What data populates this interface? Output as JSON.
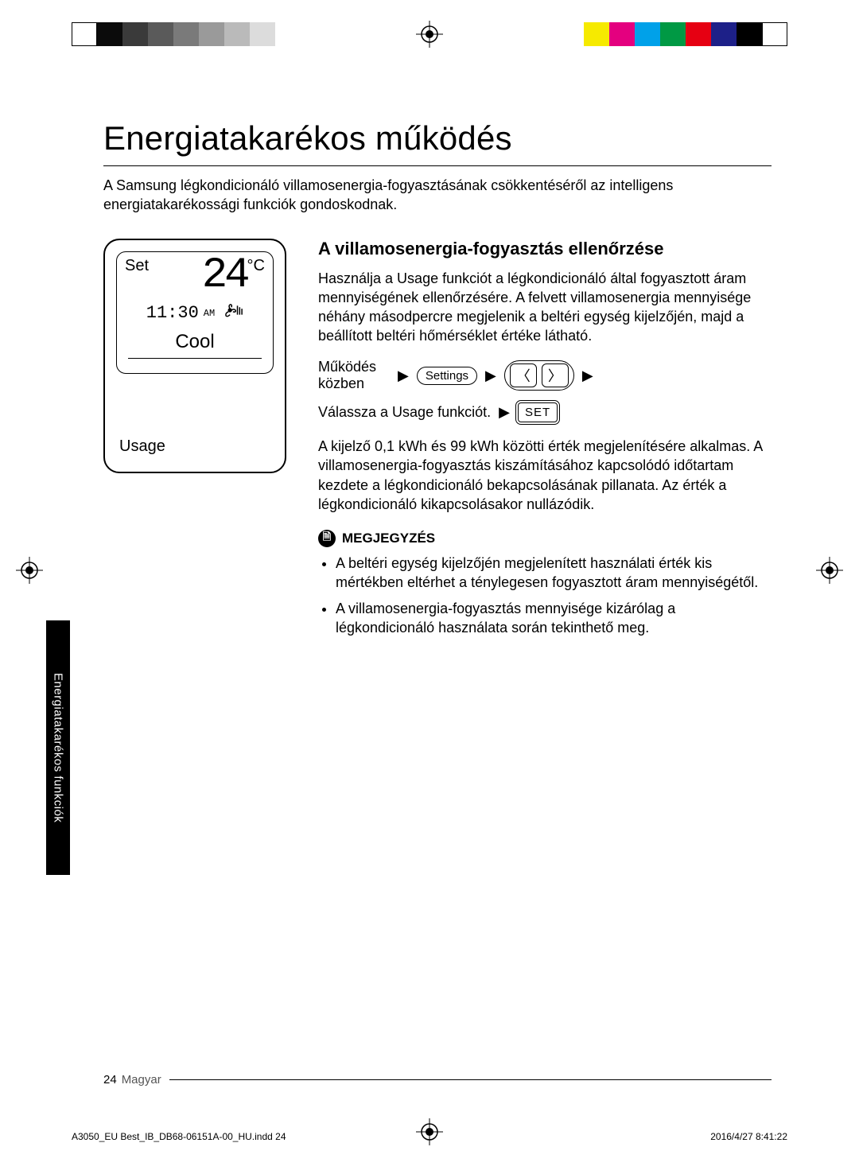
{
  "registration": {
    "bars_left": [
      "#ffffff",
      "#0b0b0b",
      "#3a3a3a",
      "#5a5a5a",
      "#7a7a7a",
      "#9a9a9a",
      "#bababa",
      "#dcdcdc"
    ],
    "bars_right": [
      "#f6ea00",
      "#e4007f",
      "#00a1e9",
      "#009944",
      "#e60012",
      "#1d2088",
      "#000000",
      "#ffffff"
    ]
  },
  "title": "Energiatakarékos működés",
  "intro": "A Samsung légkondicionáló villamosenergia-fogyasztásának csökkentéséről az intelligens energiatakarékossági funkciók gondoskodnak.",
  "remote": {
    "set_label": "Set",
    "temp_value": "24",
    "temp_unit": "°C",
    "time": "11:30",
    "ampm": "AM",
    "mode": "Cool",
    "bottom_label": "Usage"
  },
  "section": {
    "heading": "A villamosenergia-fogyasztás ellenőrzése",
    "p1": "Használja a Usage funkciót a légkondicionáló által fogyasztott áram mennyiségének ellenőrzésére. A felvett villamosenergia mennyisége néhány másodpercre megjelenik a beltéri egység kijelzőjén, majd a beállított beltéri hőmérséklet értéke látható.",
    "step_intro": "Működés közben",
    "settings_btn": "Settings",
    "step2": "Válassza a Usage funkciót.",
    "set_btn": "SET",
    "p2": "A kijelző 0,1 kWh és 99 kWh közötti érték megjelenítésére alkalmas. A villamosenergia-fogyasztás kiszámításához kapcsolódó időtartam kezdete a légkondicionáló bekapcsolásának pillanata. Az érték a légkondicionáló kikapcsolásakor nullázódik.",
    "note_label": "MEGJEGYZÉS",
    "notes": [
      "A beltéri egység kijelzőjén megjelenített használati érték kis mértékben eltérhet a ténylegesen fogyasztott áram mennyiségétől.",
      "A villamosenergia-fogyasztás mennyisége kizárólag a légkondicionáló használata során tekinthető meg."
    ]
  },
  "sidetab": "Energiatakarékos funkciók",
  "footer": {
    "pagenum": "24",
    "lang": "Magyar"
  },
  "printfoot": {
    "file": "A3050_EU Best_IB_DB68-06151A-00_HU.indd   24",
    "stamp": "2016/4/27   8:41:22"
  }
}
